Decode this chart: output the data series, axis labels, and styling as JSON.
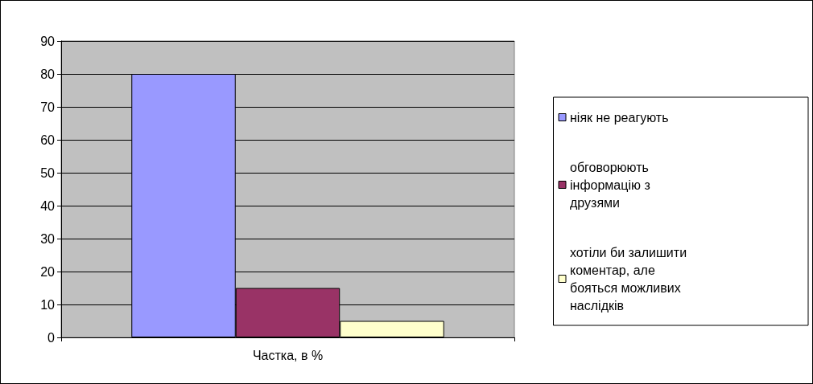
{
  "chart_data": {
    "type": "bar",
    "categories": [
      "Частка, в %"
    ],
    "series": [
      {
        "name": "ніяк не реагують",
        "color": "#9999ff",
        "values": [
          80
        ]
      },
      {
        "name": "обговорюють інформацію з друзями",
        "color": "#993366",
        "values": [
          15
        ]
      },
      {
        "name": "хотіли би залишити коментар, але бояться можливих наслідків",
        "color": "#ffffcc",
        "values": [
          5
        ]
      }
    ],
    "ylim": [
      0,
      90
    ],
    "yticks": [
      0,
      10,
      20,
      30,
      40,
      50,
      60,
      70,
      80,
      90
    ],
    "grid": "y",
    "legend": "right"
  }
}
